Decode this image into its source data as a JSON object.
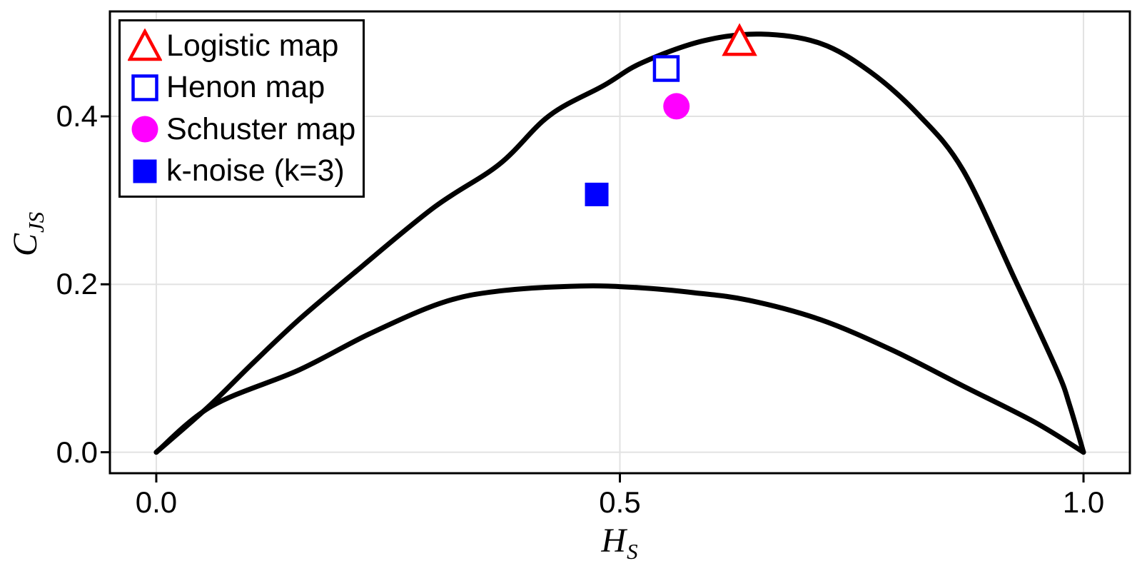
{
  "figure": {
    "background": "#ffffff"
  },
  "chart_data": {
    "type": "scatter",
    "title": "",
    "xlabel": {
      "base": "H",
      "sub": "S"
    },
    "ylabel": {
      "base": "C",
      "sub": "JS"
    },
    "xlim": [
      -0.05,
      1.05
    ],
    "ylim": [
      -0.025,
      0.525
    ],
    "xticks": {
      "values": [
        0.0,
        0.5,
        1.0
      ],
      "labels": [
        "0.0",
        "0.5",
        "1.0"
      ]
    },
    "yticks": {
      "values": [
        0.0,
        0.2,
        0.4
      ],
      "labels": [
        "0.0",
        "0.2",
        "0.4"
      ]
    },
    "grid": true,
    "legend_position": "upper left",
    "colors": {
      "grid": "#e2e2e2",
      "axis": "#000000",
      "curves": "#000000"
    },
    "boundary_curves": [
      {
        "name": "max-complexity-boundary",
        "color": "#000000",
        "line_width": 7,
        "points": [
          [
            0.0,
            0.0
          ],
          [
            0.056,
            0.054
          ],
          [
            0.105,
            0.107
          ],
          [
            0.154,
            0.158
          ],
          [
            0.216,
            0.216
          ],
          [
            0.3,
            0.292
          ],
          [
            0.37,
            0.343
          ],
          [
            0.424,
            0.401
          ],
          [
            0.483,
            0.437
          ],
          [
            0.524,
            0.464
          ],
          [
            0.59,
            0.49
          ],
          [
            0.652,
            0.498
          ],
          [
            0.716,
            0.487
          ],
          [
            0.77,
            0.453
          ],
          [
            0.822,
            0.402
          ],
          [
            0.87,
            0.336
          ],
          [
            0.926,
            0.206
          ],
          [
            0.972,
            0.096
          ],
          [
            0.985,
            0.056
          ],
          [
            1.0,
            0.0
          ]
        ]
      },
      {
        "name": "min-complexity-boundary",
        "color": "#000000",
        "line_width": 7,
        "points": [
          [
            0.0,
            0.0
          ],
          [
            0.06,
            0.055
          ],
          [
            0.154,
            0.098
          ],
          [
            0.23,
            0.141
          ],
          [
            0.308,
            0.178
          ],
          [
            0.37,
            0.192
          ],
          [
            0.458,
            0.198
          ],
          [
            0.52,
            0.196
          ],
          [
            0.58,
            0.19
          ],
          [
            0.639,
            0.181
          ],
          [
            0.716,
            0.158
          ],
          [
            0.793,
            0.122
          ],
          [
            0.87,
            0.079
          ],
          [
            0.947,
            0.036
          ],
          [
            1.0,
            0.0
          ]
        ]
      }
    ],
    "series": [
      {
        "name": "Logistic map",
        "marker": "triangle-open",
        "color": "#ff0000",
        "size": 38,
        "x": 0.629,
        "y": 0.49
      },
      {
        "name": "Henon map",
        "marker": "square-open",
        "color": "#0000ff",
        "size": 33,
        "x": 0.55,
        "y": 0.457
      },
      {
        "name": "Schuster map",
        "marker": "circle-filled",
        "color": "#ff00ff",
        "size": 37,
        "x": 0.561,
        "y": 0.412
      },
      {
        "name": "k-noise (k=3)",
        "marker": "square-filled",
        "color": "#0000ff",
        "size": 33,
        "x": 0.475,
        "y": 0.307
      }
    ]
  }
}
